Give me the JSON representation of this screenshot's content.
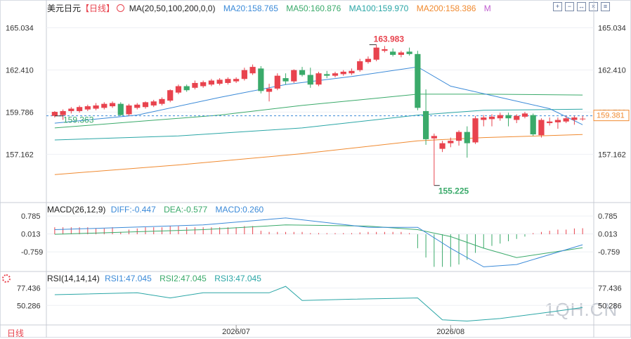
{
  "header": {
    "symbol": "美元日元",
    "period_tag": "【日线】",
    "ma_label": "MA(20,50,100,200,0,0)",
    "ma20": "MA20:158.765",
    "ma50": "MA50:160.876",
    "ma100": "MA100:159.970",
    "ma200": "MA200:158.386",
    "ma_extra": "M"
  },
  "toolbar": [
    "plus-box-icon",
    "minus-box-icon",
    "expand-arrows-icon",
    "cross-box-icon",
    "menu-box-icon"
  ],
  "price_axis": {
    "ticks": [
      "165.034",
      "162.410",
      "159.786",
      "157.162"
    ]
  },
  "current_price": "159.381",
  "high_label": "163.983",
  "low_label": "155.225",
  "ma_point_label": "159.363",
  "macd": {
    "label": "MACD(26,12,9)",
    "diff": "DIFF:-0.447",
    "dea": "DEA:-0.577",
    "macd": "MACD:0.260",
    "ticks": [
      "0.785",
      "0.013",
      "-0.759"
    ]
  },
  "rsi": {
    "label": "RSI(14,14,14)",
    "rsi1": "RSI1:47.045",
    "rsi2": "RSI2:47.045",
    "rsi3": "RSI3:47.045",
    "ticks": [
      "77.436",
      "50.286"
    ]
  },
  "dates": [
    "2026/07",
    "2026/08"
  ],
  "period_button": "日线",
  "watermark": "1QH.CN",
  "colors": {
    "up": "#e8434e",
    "down": "#3aaa6a",
    "ma20": "#3b8ad8",
    "ma50": "#3aaa6a",
    "ma100": "#2aa6a6",
    "ma200": "#f08a30",
    "dashed": "#3b8ad8"
  },
  "chart_data": {
    "type": "candlestick",
    "ylim": [
      154.2,
      165.8
    ],
    "candles": [
      {
        "o": 159.55,
        "h": 159.85,
        "l": 159.45,
        "c": 159.8
      },
      {
        "o": 159.6,
        "h": 159.95,
        "l": 159.3,
        "c": 159.85
      },
      {
        "o": 159.85,
        "h": 160.1,
        "l": 159.7,
        "c": 160.0
      },
      {
        "o": 159.85,
        "h": 160.2,
        "l": 159.75,
        "c": 160.1
      },
      {
        "o": 159.95,
        "h": 160.25,
        "l": 159.85,
        "c": 160.15
      },
      {
        "o": 160.0,
        "h": 160.35,
        "l": 159.9,
        "c": 160.2
      },
      {
        "o": 160.05,
        "h": 160.4,
        "l": 159.95,
        "c": 160.3
      },
      {
        "o": 160.15,
        "h": 160.45,
        "l": 160.05,
        "c": 160.35
      },
      {
        "o": 160.3,
        "h": 160.4,
        "l": 159.55,
        "c": 159.6
      },
      {
        "o": 159.65,
        "h": 160.3,
        "l": 159.55,
        "c": 160.2
      },
      {
        "o": 160.05,
        "h": 160.35,
        "l": 159.95,
        "c": 160.25
      },
      {
        "o": 160.1,
        "h": 160.45,
        "l": 160.0,
        "c": 160.4
      },
      {
        "o": 160.2,
        "h": 160.55,
        "l": 160.1,
        "c": 160.45
      },
      {
        "o": 160.3,
        "h": 160.7,
        "l": 160.2,
        "c": 160.6
      },
      {
        "o": 160.5,
        "h": 161.2,
        "l": 160.4,
        "c": 161.15
      },
      {
        "o": 161.0,
        "h": 161.5,
        "l": 160.9,
        "c": 161.4
      },
      {
        "o": 161.4,
        "h": 161.5,
        "l": 161.05,
        "c": 161.15
      },
      {
        "o": 161.3,
        "h": 161.75,
        "l": 161.2,
        "c": 161.6
      },
      {
        "o": 161.4,
        "h": 161.75,
        "l": 161.3,
        "c": 161.65
      },
      {
        "o": 161.5,
        "h": 161.85,
        "l": 161.4,
        "c": 161.75
      },
      {
        "o": 161.55,
        "h": 161.9,
        "l": 161.45,
        "c": 161.8
      },
      {
        "o": 161.6,
        "h": 161.95,
        "l": 161.5,
        "c": 161.85
      },
      {
        "o": 161.7,
        "h": 161.95,
        "l": 161.6,
        "c": 161.85
      },
      {
        "o": 161.85,
        "h": 162.55,
        "l": 161.75,
        "c": 162.4
      },
      {
        "o": 162.2,
        "h": 162.75,
        "l": 162.1,
        "c": 162.6
      },
      {
        "o": 162.5,
        "h": 162.65,
        "l": 160.95,
        "c": 161.1
      },
      {
        "o": 161.05,
        "h": 161.55,
        "l": 160.45,
        "c": 161.25
      },
      {
        "o": 161.25,
        "h": 162.2,
        "l": 161.15,
        "c": 162.05
      },
      {
        "o": 161.9,
        "h": 162.2,
        "l": 161.5,
        "c": 161.7
      },
      {
        "o": 161.7,
        "h": 162.45,
        "l": 161.6,
        "c": 162.4
      },
      {
        "o": 162.4,
        "h": 162.6,
        "l": 162.0,
        "c": 162.1
      },
      {
        "o": 162.1,
        "h": 162.55,
        "l": 161.3,
        "c": 161.5
      },
      {
        "o": 161.5,
        "h": 162.3,
        "l": 161.4,
        "c": 162.2
      },
      {
        "o": 162.15,
        "h": 162.35,
        "l": 161.9,
        "c": 162.05
      },
      {
        "o": 162.05,
        "h": 162.3,
        "l": 161.95,
        "c": 162.2
      },
      {
        "o": 162.15,
        "h": 162.4,
        "l": 162.05,
        "c": 162.3
      },
      {
        "o": 162.2,
        "h": 162.5,
        "l": 162.1,
        "c": 162.35
      },
      {
        "o": 162.4,
        "h": 163.1,
        "l": 162.3,
        "c": 162.95
      },
      {
        "o": 162.9,
        "h": 163.25,
        "l": 162.8,
        "c": 163.1
      },
      {
        "o": 163.05,
        "h": 163.98,
        "l": 162.95,
        "c": 163.8
      },
      {
        "o": 163.6,
        "h": 163.9,
        "l": 163.5,
        "c": 163.7
      },
      {
        "o": 163.55,
        "h": 163.75,
        "l": 163.25,
        "c": 163.35
      },
      {
        "o": 163.35,
        "h": 163.6,
        "l": 163.2,
        "c": 163.5
      },
      {
        "o": 163.55,
        "h": 163.8,
        "l": 163.3,
        "c": 163.4
      },
      {
        "o": 163.4,
        "h": 163.6,
        "l": 159.9,
        "c": 160.05
      },
      {
        "o": 159.85,
        "h": 161.2,
        "l": 157.75,
        "c": 158.1
      },
      {
        "o": 158.15,
        "h": 158.45,
        "l": 155.22,
        "c": 158.3
      },
      {
        "o": 157.5,
        "h": 158.0,
        "l": 157.3,
        "c": 157.85
      },
      {
        "o": 157.85,
        "h": 158.2,
        "l": 157.6,
        "c": 158.0
      },
      {
        "o": 158.0,
        "h": 158.65,
        "l": 157.7,
        "c": 158.55
      },
      {
        "o": 158.55,
        "h": 158.9,
        "l": 156.95,
        "c": 157.85
      },
      {
        "o": 157.9,
        "h": 159.55,
        "l": 157.8,
        "c": 159.4
      },
      {
        "o": 159.3,
        "h": 159.6,
        "l": 158.9,
        "c": 159.45
      },
      {
        "o": 159.35,
        "h": 159.65,
        "l": 158.9,
        "c": 159.5
      },
      {
        "o": 159.4,
        "h": 159.75,
        "l": 159.25,
        "c": 159.6
      },
      {
        "o": 159.6,
        "h": 159.75,
        "l": 158.9,
        "c": 159.4
      },
      {
        "o": 159.3,
        "h": 159.65,
        "l": 159.1,
        "c": 159.55
      },
      {
        "o": 159.5,
        "h": 159.8,
        "l": 159.4,
        "c": 159.7
      },
      {
        "o": 159.6,
        "h": 159.7,
        "l": 158.3,
        "c": 158.4
      },
      {
        "o": 158.35,
        "h": 159.4,
        "l": 158.2,
        "c": 159.3
      },
      {
        "o": 159.1,
        "h": 159.45,
        "l": 158.95,
        "c": 159.2
      },
      {
        "o": 159.15,
        "h": 159.45,
        "l": 158.75,
        "c": 159.3
      },
      {
        "o": 159.2,
        "h": 159.55,
        "l": 159.1,
        "c": 159.4
      },
      {
        "o": 159.3,
        "h": 159.55,
        "l": 159.0,
        "c": 159.45
      },
      {
        "o": 159.35,
        "h": 159.55,
        "l": 159.25,
        "c": 159.38
      }
    ],
    "ma20": [
      [
        0,
        159.1
      ],
      [
        10,
        159.6
      ],
      [
        20,
        160.7
      ],
      [
        28,
        161.5
      ],
      [
        36,
        162.0
      ],
      [
        44,
        162.6
      ],
      [
        48,
        161.4
      ],
      [
        54,
        160.7
      ],
      [
        60,
        160.0
      ],
      [
        64,
        159.0
      ]
    ],
    "ma50": [
      [
        0,
        158.8
      ],
      [
        10,
        159.2
      ],
      [
        20,
        159.6
      ],
      [
        30,
        160.2
      ],
      [
        40,
        160.7
      ],
      [
        44,
        160.9
      ],
      [
        52,
        160.9
      ],
      [
        64,
        160.85
      ]
    ],
    "ma100": [
      [
        0,
        158.05
      ],
      [
        15,
        158.3
      ],
      [
        30,
        158.8
      ],
      [
        44,
        159.6
      ],
      [
        52,
        159.9
      ],
      [
        64,
        159.97
      ]
    ],
    "ma200": [
      [
        0,
        155.9
      ],
      [
        15,
        156.5
      ],
      [
        30,
        157.2
      ],
      [
        44,
        158.0
      ],
      [
        52,
        158.2
      ],
      [
        64,
        158.39
      ]
    ],
    "macd_diff": [
      [
        0,
        0.2
      ],
      [
        18,
        0.4
      ],
      [
        28,
        0.7
      ],
      [
        38,
        0.3
      ],
      [
        44,
        0.3
      ],
      [
        48,
        -0.6
      ],
      [
        52,
        -1.4
      ],
      [
        56,
        -1.3
      ],
      [
        64,
        -0.45
      ]
    ],
    "macd_dea": [
      [
        0,
        0.0
      ],
      [
        18,
        0.2
      ],
      [
        28,
        0.4
      ],
      [
        38,
        0.35
      ],
      [
        44,
        0.2
      ],
      [
        48,
        -0.1
      ],
      [
        52,
        -0.6
      ],
      [
        56,
        -1.0
      ],
      [
        64,
        -0.58
      ]
    ],
    "macd_hist": [
      0.3,
      0.3,
      0.3,
      0.3,
      0.3,
      0.25,
      0.25,
      0.3,
      0.1,
      0.2,
      0.25,
      0.3,
      0.3,
      0.3,
      0.35,
      0.35,
      0.3,
      0.3,
      0.3,
      0.3,
      0.3,
      0.3,
      0.3,
      0.35,
      0.35,
      0.15,
      0.1,
      0.1,
      0.1,
      0.1,
      0.1,
      0.05,
      0.05,
      0.05,
      0.05,
      0.05,
      0.05,
      0.08,
      0.1,
      0.1,
      0.1,
      0.1,
      0.1,
      0.05,
      -0.6,
      -1.0,
      -1.4,
      -1.4,
      -1.4,
      -1.3,
      -1.1,
      -0.8,
      -0.6,
      -0.5,
      -0.4,
      -0.3,
      -0.2,
      -0.1,
      0.05,
      0.1,
      0.15,
      0.2,
      0.2,
      0.25,
      0.26
    ],
    "rsi": [
      [
        0,
        67
      ],
      [
        10,
        70
      ],
      [
        14,
        62
      ],
      [
        18,
        70
      ],
      [
        26,
        70
      ],
      [
        28,
        80
      ],
      [
        30,
        58
      ],
      [
        36,
        60
      ],
      [
        44,
        62
      ],
      [
        47,
        28
      ],
      [
        50,
        26
      ],
      [
        54,
        30
      ],
      [
        60,
        40
      ],
      [
        64,
        47
      ]
    ],
    "rsi_ylim": [
      20,
      90
    ]
  }
}
